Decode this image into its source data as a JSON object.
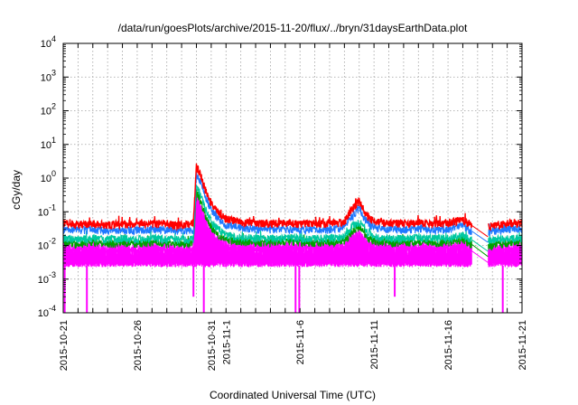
{
  "chart_data": {
    "type": "line",
    "title": "/data/run/goesPlots/archive/2015-11-20/flux/../bryn/31daysEarthData.plot",
    "xlabel": "Coordinated Universal Time (UTC)",
    "ylabel": "cGy/day",
    "xlim": [
      0,
      31
    ],
    "ylim": [
      0.0001,
      10000
    ],
    "yscale": "log",
    "grid": true,
    "x_ticks": [
      {
        "x": 0,
        "label": "2015-10-21"
      },
      {
        "x": 5,
        "label": "2015-10-26"
      },
      {
        "x": 10,
        "label": "2015-10-31"
      },
      {
        "x": 11,
        "label": "2015-11-1"
      },
      {
        "x": 16,
        "label": "2015-11-6"
      },
      {
        "x": 21,
        "label": "2015-11-11"
      },
      {
        "x": 26,
        "label": "2015-11-16"
      },
      {
        "x": 31,
        "label": "2015-11-21"
      }
    ],
    "y_ticks": [
      {
        "value": 0.0001,
        "base": "10",
        "exp": "-4"
      },
      {
        "value": 0.001,
        "base": "10",
        "exp": "-3"
      },
      {
        "value": 0.01,
        "base": "10",
        "exp": "-2"
      },
      {
        "value": 0.1,
        "base": "10",
        "exp": "-1"
      },
      {
        "value": 1,
        "base": "10",
        "exp": "0"
      },
      {
        "value": 10,
        "base": "10",
        "exp": "1"
      },
      {
        "value": 100,
        "base": "10",
        "exp": "2"
      },
      {
        "value": 1000,
        "base": "10",
        "exp": "3"
      },
      {
        "value": 10000,
        "base": "10",
        "exp": "4"
      }
    ],
    "series": [
      {
        "color": "#ff0000",
        "x": [
          0,
          1,
          2,
          3,
          4,
          5,
          6,
          7,
          8,
          8.5,
          8.8,
          9,
          9.3,
          9.6,
          10,
          10.5,
          11,
          12,
          13,
          14,
          15,
          16,
          17,
          18,
          19,
          19.5,
          20,
          20.5,
          21,
          22,
          23,
          24,
          25,
          26,
          27,
          27.5,
          28.5,
          30,
          31
        ],
        "y": [
          0.045,
          0.042,
          0.044,
          0.04,
          0.043,
          0.041,
          0.044,
          0.042,
          0.04,
          0.042,
          0.045,
          2.3,
          1.2,
          0.45,
          0.18,
          0.09,
          0.06,
          0.05,
          0.045,
          0.044,
          0.046,
          0.043,
          0.045,
          0.044,
          0.05,
          0.12,
          0.2,
          0.08,
          0.05,
          0.045,
          0.044,
          0.046,
          0.043,
          0.045,
          0.06,
          0.04,
          0.035,
          0.045,
          0.045
        ]
      },
      {
        "color": "#1e78ff",
        "x": [
          0,
          1,
          2,
          3,
          4,
          5,
          6,
          7,
          8,
          8.5,
          8.8,
          9,
          9.3,
          9.6,
          10,
          10.5,
          11,
          12,
          13,
          14,
          15,
          16,
          17,
          18,
          19,
          19.5,
          20,
          20.5,
          21,
          22,
          23,
          24,
          25,
          26,
          27,
          27.5,
          28.5,
          30,
          31
        ],
        "y": [
          0.03,
          0.028,
          0.029,
          0.027,
          0.029,
          0.028,
          0.03,
          0.028,
          0.027,
          0.028,
          0.03,
          1.3,
          0.7,
          0.28,
          0.11,
          0.06,
          0.04,
          0.033,
          0.03,
          0.029,
          0.031,
          0.029,
          0.03,
          0.029,
          0.033,
          0.07,
          0.12,
          0.05,
          0.033,
          0.03,
          0.029,
          0.031,
          0.029,
          0.03,
          0.04,
          0.027,
          0.024,
          0.03,
          0.03
        ]
      },
      {
        "color": "#00c8a0",
        "x": [
          0,
          1,
          2,
          3,
          4,
          5,
          6,
          7,
          8,
          8.5,
          8.8,
          9,
          9.3,
          9.6,
          10,
          10.5,
          11,
          12,
          13,
          14,
          15,
          16,
          17,
          18,
          19,
          19.5,
          20,
          20.5,
          21,
          22,
          23,
          24,
          25,
          26,
          27,
          27.5,
          28.5,
          30,
          31
        ],
        "y": [
          0.016,
          0.015,
          0.016,
          0.015,
          0.016,
          0.015,
          0.016,
          0.015,
          0.015,
          0.015,
          0.016,
          0.6,
          0.3,
          0.12,
          0.05,
          0.03,
          0.02,
          0.017,
          0.016,
          0.016,
          0.017,
          0.016,
          0.016,
          0.016,
          0.018,
          0.035,
          0.05,
          0.025,
          0.018,
          0.016,
          0.016,
          0.017,
          0.016,
          0.016,
          0.02,
          0.015,
          0.013,
          0.016,
          0.016
        ]
      },
      {
        "color": "#00a000",
        "x": [
          0,
          1,
          2,
          3,
          4,
          5,
          6,
          7,
          8,
          8.5,
          8.8,
          9,
          9.3,
          9.6,
          10,
          10.5,
          11,
          12,
          13,
          14,
          15,
          16,
          17,
          18,
          19,
          19.5,
          20,
          20.5,
          21,
          22,
          23,
          24,
          25,
          26,
          27,
          27.5,
          28.5,
          30,
          31
        ],
        "y": [
          0.012,
          0.011,
          0.012,
          0.011,
          0.012,
          0.011,
          0.012,
          0.011,
          0.011,
          0.011,
          0.012,
          0.4,
          0.2,
          0.08,
          0.035,
          0.02,
          0.015,
          0.013,
          0.012,
          0.012,
          0.013,
          0.012,
          0.012,
          0.012,
          0.013,
          0.025,
          0.035,
          0.018,
          0.013,
          0.012,
          0.012,
          0.013,
          0.012,
          0.012,
          0.015,
          0.011,
          0.009,
          0.012,
          0.012
        ]
      },
      {
        "color": "#ff00ff",
        "x": [
          0,
          1,
          2,
          3,
          4,
          5,
          6,
          7,
          8,
          8.5,
          8.8,
          9,
          9.3,
          9.6,
          10,
          10.5,
          11,
          12,
          13,
          14,
          15,
          16,
          17,
          18,
          19,
          19.5,
          20,
          20.5,
          21,
          22,
          23,
          24,
          25,
          26,
          27,
          27.5,
          28.5,
          30,
          31
        ],
        "y": [
          0.008,
          0.007,
          0.008,
          0.007,
          0.008,
          0.007,
          0.008,
          0.007,
          0.007,
          0.007,
          0.008,
          0.25,
          0.12,
          0.05,
          0.02,
          0.012,
          0.009,
          0.008,
          0.008,
          0.008,
          0.008,
          0.008,
          0.008,
          0.008,
          0.009,
          0.015,
          0.02,
          0.011,
          0.009,
          0.008,
          0.008,
          0.008,
          0.008,
          0.008,
          0.009,
          0.007,
          0.006,
          0.008,
          0.008
        ]
      }
    ],
    "magenta_floor": 0.0025,
    "magenta_spikes": [
      {
        "x": 0.1,
        "y": 0.0001
      },
      {
        "x": 1.6,
        "y": 0.0001
      },
      {
        "x": 8.8,
        "y": 0.0003
      },
      {
        "x": 9.5,
        "y": 0.0001
      },
      {
        "x": 15.7,
        "y": 0.0001
      },
      {
        "x": 15.95,
        "y": 0.0001
      },
      {
        "x": 22.4,
        "y": 0.0003
      },
      {
        "x": 29.7,
        "y": 0.0001
      }
    ],
    "data_gap": [
      27.6,
      28.7
    ]
  }
}
